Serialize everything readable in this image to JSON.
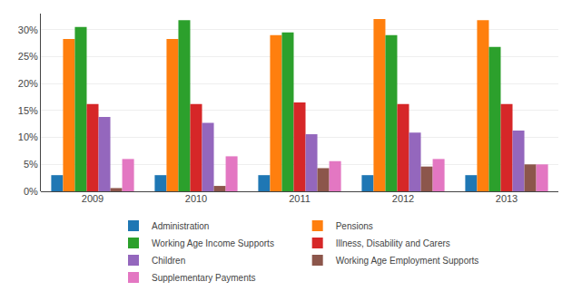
{
  "chart_data": {
    "type": "bar",
    "categories": [
      "2009",
      "2010",
      "2011",
      "2012",
      "2013"
    ],
    "series": [
      {
        "name": "Administration",
        "values": [
          3.0,
          3.0,
          3.0,
          3.0,
          3.0
        ]
      },
      {
        "name": "Pensions",
        "values": [
          28.3,
          28.3,
          29.0,
          32.0,
          31.8
        ]
      },
      {
        "name": "Working Age Income Supports",
        "values": [
          30.5,
          31.8,
          29.5,
          29.0,
          26.8
        ]
      },
      {
        "name": "Illness, Disability and Carers",
        "values": [
          16.2,
          16.2,
          16.5,
          16.2,
          16.2
        ]
      },
      {
        "name": "Children",
        "values": [
          13.8,
          12.7,
          10.6,
          10.9,
          11.3
        ]
      },
      {
        "name": "Working Age Employment Supports",
        "values": [
          0.6,
          1.0,
          4.3,
          4.6,
          5.0
        ]
      },
      {
        "name": "Supplementary Payments",
        "values": [
          6.0,
          6.5,
          5.6,
          6.0,
          5.0
        ]
      }
    ],
    "ylim": [
      0,
      33
    ],
    "yticks": [
      {
        "value": 0,
        "label": "0%"
      },
      {
        "value": 5,
        "label": "5%"
      },
      {
        "value": 10,
        "label": "10%"
      },
      {
        "value": 15,
        "label": "15%"
      },
      {
        "value": 20,
        "label": "20%"
      },
      {
        "value": 25,
        "label": "25%"
      },
      {
        "value": 30,
        "label": "30%"
      }
    ],
    "grid": true
  }
}
